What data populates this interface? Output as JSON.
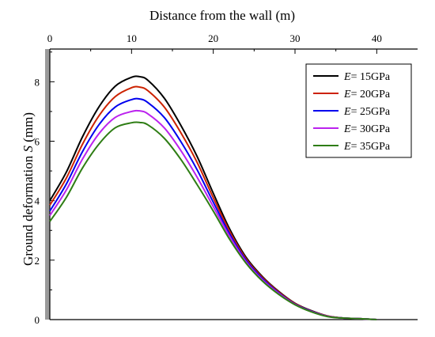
{
  "chart_data": {
    "type": "line",
    "xlabel": "Distance from the wall (m)",
    "ylabel_prefix": "Ground deformation ",
    "ylabel_var": "S",
    "ylabel_suffix": " (mm)",
    "xlim": [
      0,
      45
    ],
    "ylim": [
      0,
      9.1
    ],
    "xticks": [
      0,
      10,
      20,
      30,
      40
    ],
    "yticks": [
      0,
      2,
      4,
      6,
      8
    ],
    "grid": false,
    "legend_position": "top-right",
    "legend_var": "E",
    "series": [
      {
        "name": "= 15GPa",
        "color": "#000000",
        "x": [
          0,
          2,
          4,
          6,
          8,
          10,
          11,
          12,
          14,
          16,
          18,
          20,
          22,
          24,
          26,
          28,
          30,
          32,
          34,
          36,
          38,
          40
        ],
        "y": [
          4.0,
          4.95,
          6.15,
          7.15,
          7.85,
          8.15,
          8.17,
          8.05,
          7.45,
          6.55,
          5.5,
          4.25,
          3.05,
          2.1,
          1.45,
          0.95,
          0.55,
          0.3,
          0.12,
          0.05,
          0.03,
          0.0
        ]
      },
      {
        "name": "= 20GPa",
        "color": "#cc2200",
        "x": [
          0,
          2,
          4,
          6,
          8,
          10,
          11,
          12,
          14,
          16,
          18,
          20,
          22,
          24,
          26,
          28,
          30,
          32,
          34,
          36,
          38,
          40
        ],
        "y": [
          3.85,
          4.75,
          5.9,
          6.85,
          7.5,
          7.8,
          7.82,
          7.7,
          7.15,
          6.3,
          5.3,
          4.1,
          2.97,
          2.05,
          1.42,
          0.93,
          0.54,
          0.29,
          0.12,
          0.05,
          0.03,
          0.0
        ]
      },
      {
        "name": "= 25GPa",
        "color": "#0000ee",
        "x": [
          0,
          2,
          4,
          6,
          8,
          10,
          11,
          12,
          14,
          16,
          18,
          20,
          22,
          24,
          26,
          28,
          30,
          32,
          34,
          36,
          38,
          40
        ],
        "y": [
          3.65,
          4.55,
          5.65,
          6.55,
          7.15,
          7.4,
          7.42,
          7.3,
          6.8,
          6.0,
          5.05,
          3.95,
          2.88,
          2.0,
          1.38,
          0.9,
          0.52,
          0.28,
          0.11,
          0.05,
          0.03,
          0.0
        ]
      },
      {
        "name": "= 30GPa",
        "color": "#bb22ee",
        "x": [
          0,
          2,
          4,
          6,
          8,
          10,
          11,
          12,
          14,
          16,
          18,
          20,
          22,
          24,
          26,
          28,
          30,
          32,
          34,
          36,
          38,
          40
        ],
        "y": [
          3.5,
          4.35,
          5.4,
          6.25,
          6.8,
          7.0,
          7.02,
          6.92,
          6.45,
          5.7,
          4.8,
          3.8,
          2.8,
          1.95,
          1.34,
          0.88,
          0.51,
          0.27,
          0.11,
          0.05,
          0.03,
          0.0
        ]
      },
      {
        "name": "= 35GPa",
        "color": "#2e7d14",
        "x": [
          0,
          2,
          4,
          6,
          8,
          10,
          11,
          12,
          14,
          16,
          18,
          20,
          22,
          24,
          26,
          28,
          30,
          32,
          34,
          36,
          38,
          40
        ],
        "y": [
          3.3,
          4.1,
          5.1,
          5.9,
          6.45,
          6.62,
          6.63,
          6.55,
          6.1,
          5.4,
          4.55,
          3.65,
          2.7,
          1.9,
          1.3,
          0.85,
          0.5,
          0.26,
          0.1,
          0.05,
          0.03,
          0.0
        ]
      }
    ]
  }
}
